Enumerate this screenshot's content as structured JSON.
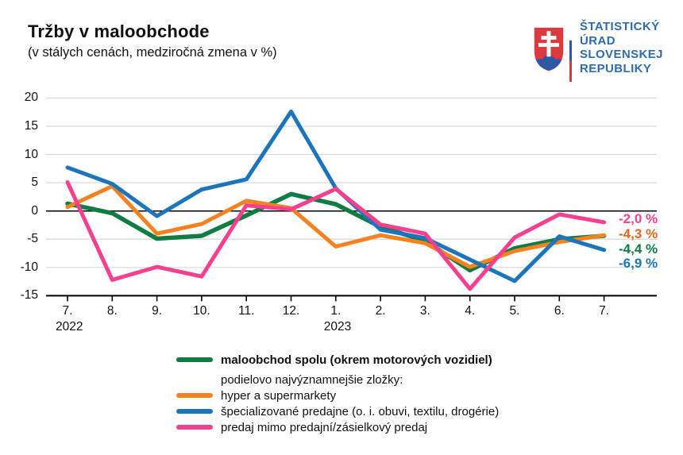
{
  "header": {
    "title": "Tržby v maloobchode",
    "subtitle": "(v stálych cenách, medziročná zmena v %)"
  },
  "logo": {
    "line1": "ŠTATISTICKÝ",
    "line2": "ÚRAD",
    "line3": "SLOVENSKEJ",
    "line4": "REPUBLIKY",
    "text_color": "#2F6BB4",
    "shield_red": "#DE393D",
    "shield_blue": "#2E57A6",
    "flag_white": "#ffffff",
    "flag_blue": "#2E57A6",
    "flag_red": "#DE393D"
  },
  "chart_data": {
    "type": "line",
    "title": "Tržby v maloobchode",
    "subtitle": "(v stálych cenách, medziročná zmena v %)",
    "x_tick_labels": [
      "7.",
      "8.",
      "9.",
      "10.",
      "11.",
      "12.",
      "1.",
      "2.",
      "3.",
      "4.",
      "5.",
      "6.",
      "7."
    ],
    "x_year_labels": [
      {
        "index": 0,
        "label": "2022"
      },
      {
        "index": 6,
        "label": "2023"
      }
    ],
    "y_ticks": [
      20,
      15,
      10,
      5,
      0,
      -5,
      -10,
      -15
    ],
    "ylim": [
      -15,
      20
    ],
    "grid": true,
    "legend_position": "bottom",
    "series": [
      {
        "id": "spolu",
        "name": "maloobchod spolu (okrem motorových vozidiel)",
        "color": "#0E7C43",
        "stroke_width": 5.5,
        "values": [
          1.3,
          -0.4,
          -4.9,
          -4.4,
          -0.8,
          3.0,
          1.2,
          -2.8,
          -5.3,
          -10.5,
          -6.6,
          -5.0,
          -4.4
        ]
      },
      {
        "id": "hyper",
        "name": "hyper a supermarkety",
        "color": "#F5821F",
        "stroke_width": 5,
        "values": [
          0.7,
          4.4,
          -4.0,
          -2.3,
          1.8,
          0.5,
          -6.3,
          -4.3,
          -5.7,
          -9.9,
          -7.1,
          -5.5,
          -4.3
        ]
      },
      {
        "id": "specializovane",
        "name": "špecializované predajne (o. i. obuvi, textilu, drogérie)",
        "color": "#1C75BC",
        "stroke_width": 5,
        "values": [
          7.7,
          4.8,
          -0.9,
          3.8,
          5.6,
          17.6,
          4.0,
          -3.3,
          -4.8,
          -8.6,
          -12.4,
          -4.5,
          -6.9
        ]
      },
      {
        "id": "mimo",
        "name": "predaj mimo predajní/zásielkový predaj",
        "color": "#F4408F",
        "stroke_width": 5,
        "values": [
          5.1,
          -12.2,
          -9.9,
          -11.6,
          1.0,
          0.3,
          3.9,
          -2.4,
          -4.0,
          -13.8,
          -4.7,
          -0.6,
          -2.0
        ]
      }
    ],
    "end_labels": [
      {
        "text": "-2,0 %",
        "color": "#F4408F",
        "series": "mimo"
      },
      {
        "text": "-4,3 %",
        "color": "#EA641A",
        "series": "hyper"
      },
      {
        "text": "-4,4 %",
        "color": "#0E7C43",
        "series": "spolu"
      },
      {
        "text": "-6,9 %",
        "color": "#1C75BC",
        "series": "specializovane"
      }
    ]
  },
  "legend": {
    "rows": [
      {
        "label": "maloobchod spolu (okrem motorových vozidiel)",
        "color": "#0E7C43",
        "bold": true
      },
      {
        "label": "podielovo najvýznamnejšie zložky:",
        "color": null,
        "bold": false
      },
      {
        "label": "hyper a supermarkety",
        "color": "#F5821F",
        "bold": false
      },
      {
        "label": "špecializované predajne (o. i. obuvi, textilu, drogérie)",
        "color": "#1C75BC",
        "bold": false
      },
      {
        "label": "predaj mimo predajní/zásielkový predaj",
        "color": "#F4408F",
        "bold": false
      }
    ]
  }
}
